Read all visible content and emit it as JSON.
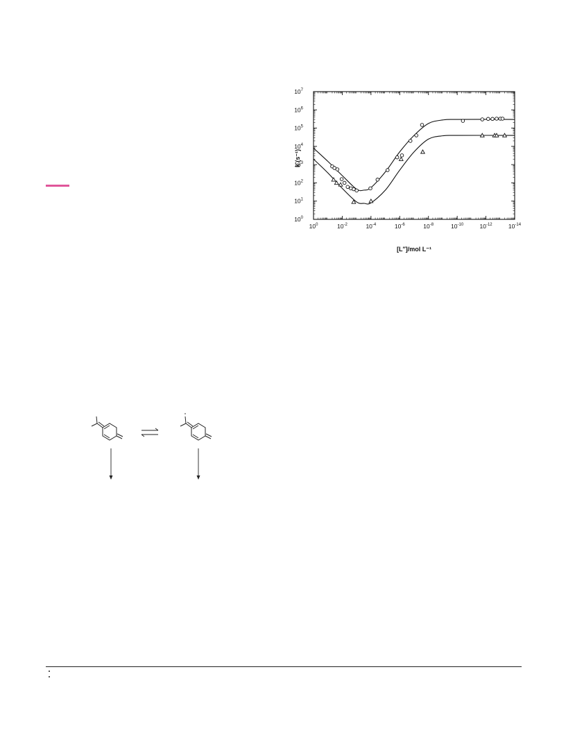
{
  "page": {
    "accent_color": "#e0559a"
  },
  "chart_data": {
    "type": "scatter",
    "xlabel": "[L″]/mol L⁻¹",
    "ylabel": "k (s⁻¹)",
    "x_scale": "log-reversed",
    "y_scale": "log",
    "xlim": [
      1,
      1e-14
    ],
    "ylim": [
      1,
      10000000.0
    ],
    "x_ticks": [
      {
        "value": 1,
        "base": "10",
        "exp": "0"
      },
      {
        "value": 0.01,
        "base": "10",
        "exp": "-2"
      },
      {
        "value": 0.0001,
        "base": "10",
        "exp": "-4"
      },
      {
        "value": 1e-06,
        "base": "10",
        "exp": "-6"
      },
      {
        "value": 1e-08,
        "base": "10",
        "exp": "-8"
      },
      {
        "value": 1e-10,
        "base": "10",
        "exp": "-10"
      },
      {
        "value": 1e-12,
        "base": "10",
        "exp": "-12"
      },
      {
        "value": 1e-14,
        "base": "10",
        "exp": "-14"
      }
    ],
    "y_ticks": [
      {
        "value": 1,
        "base": "10",
        "exp": "0"
      },
      {
        "value": 10,
        "base": "10",
        "exp": "1"
      },
      {
        "value": 100,
        "base": "10",
        "exp": "2"
      },
      {
        "value": 1000,
        "base": "10",
        "exp": "3"
      },
      {
        "value": 10000,
        "base": "10",
        "exp": "4"
      },
      {
        "value": 100000,
        "base": "10",
        "exp": "5"
      },
      {
        "value": 1000000,
        "base": "10",
        "exp": "6"
      },
      {
        "value": 10000000,
        "base": "10",
        "exp": "7"
      }
    ],
    "grid": false,
    "series": [
      {
        "marker": "circle",
        "points": [
          {
            "x": 0.05,
            "y": 800
          },
          {
            "x": 0.035,
            "y": 650
          },
          {
            "x": 0.022,
            "y": 550
          },
          {
            "x": 0.011,
            "y": 160
          },
          {
            "x": 0.007,
            "y": 100
          },
          {
            "x": 0.0042,
            "y": 60
          },
          {
            "x": 0.0025,
            "y": 50
          },
          {
            "x": 0.0016,
            "y": 45
          },
          {
            "x": 0.001,
            "y": 38
          },
          {
            "x": 0.00011,
            "y": 50
          },
          {
            "x": 3.5e-05,
            "y": 150
          },
          {
            "x": 7e-06,
            "y": 500
          },
          {
            "x": 1.5e-06,
            "y": 2500
          },
          {
            "x": 7e-07,
            "y": 3200
          },
          {
            "x": 1.8e-07,
            "y": 20000
          },
          {
            "x": 7e-08,
            "y": 40000
          },
          {
            "x": 2.8e-08,
            "y": 150000
          },
          {
            "x": 4e-11,
            "y": 250000
          },
          {
            "x": 1.8e-12,
            "y": 300000
          },
          {
            "x": 7e-13,
            "y": 320000
          },
          {
            "x": 3.5e-13,
            "y": 320000
          },
          {
            "x": 1.8e-13,
            "y": 330000
          },
          {
            "x": 1e-13,
            "y": 330000
          },
          {
            "x": 7e-14,
            "y": 330000
          }
        ],
        "fit_curve": [
          {
            "x": 1,
            "y": 8000
          },
          {
            "x": 0.1,
            "y": 1500
          },
          {
            "x": 0.01,
            "y": 250
          },
          {
            "x": 0.001,
            "y": 45
          },
          {
            "x": 0.0003,
            "y": 40
          },
          {
            "x": 0.0001,
            "y": 55
          },
          {
            "x": 1e-05,
            "y": 400
          },
          {
            "x": 1e-06,
            "y": 5000
          },
          {
            "x": 1e-07,
            "y": 40000
          },
          {
            "x": 1e-08,
            "y": 180000
          },
          {
            "x": 1e-09,
            "y": 280000
          },
          {
            "x": 1e-10,
            "y": 300000
          },
          {
            "x": 1e-14,
            "y": 300000
          }
        ]
      },
      {
        "marker": "triangle",
        "points": [
          {
            "x": 0.04,
            "y": 150
          },
          {
            "x": 0.025,
            "y": 100
          },
          {
            "x": 0.013,
            "y": 80
          },
          {
            "x": 0.0016,
            "y": 9
          },
          {
            "x": 0.0001,
            "y": 10
          },
          {
            "x": 8e-07,
            "y": 2000
          },
          {
            "x": 2.5e-08,
            "y": 5000
          },
          {
            "x": 1.8e-12,
            "y": 40000
          },
          {
            "x": 2.5e-13,
            "y": 40000
          },
          {
            "x": 1.8e-13,
            "y": 40000
          },
          {
            "x": 5e-14,
            "y": 40000
          }
        ],
        "fit_curve": [
          {
            "x": 1,
            "y": 2000
          },
          {
            "x": 0.1,
            "y": 350
          },
          {
            "x": 0.01,
            "y": 50
          },
          {
            "x": 0.001,
            "y": 9
          },
          {
            "x": 0.0003,
            "y": 7.5
          },
          {
            "x": 0.0001,
            "y": 8
          },
          {
            "x": 1e-05,
            "y": 40
          },
          {
            "x": 1e-06,
            "y": 500
          },
          {
            "x": 1e-07,
            "y": 5000
          },
          {
            "x": 1e-08,
            "y": 25000
          },
          {
            "x": 1e-09,
            "y": 38000
          },
          {
            "x": 1e-10,
            "y": 40000
          },
          {
            "x": 1e-14,
            "y": 40000
          }
        ]
      }
    ]
  }
}
